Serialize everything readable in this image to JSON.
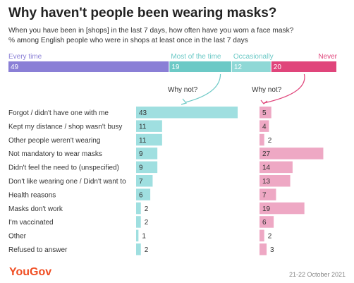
{
  "title": "Why haven't people been wearing masks?",
  "subtitle_1": "When you have been in [shops] in the last 7 days, how often have you worn a face mask?",
  "subtitle_2": "% among English people who were in shops at least once in the last 7 days",
  "brand": "YouGov",
  "date": "21-22 October 2021",
  "colors": {
    "every_time": "#8a7fd6",
    "most_of_the_time": "#6cc9c6",
    "occasionally": "#8fd8d6",
    "never": "#e0457b",
    "reason_left": "#9fdfe0",
    "reason_right": "#eea8c4",
    "text": "#333333"
  },
  "chart_data": [
    {
      "type": "bar",
      "orientation": "horizontal-stacked",
      "segments": [
        {
          "name": "Every time",
          "value": 49
        },
        {
          "name": "Most of the time",
          "value": 19
        },
        {
          "name": "Occasionally",
          "value": 12
        },
        {
          "name": "Never",
          "value": 20
        }
      ],
      "annotations": [
        "Why not?",
        "Why not?"
      ]
    },
    {
      "type": "bar",
      "orientation": "horizontal",
      "categories": [
        "Forgot / didn't have one with me",
        "Kept my distance / shop wasn't busy",
        "Other people weren't wearing",
        "Not mandatory to wear masks",
        "Didn't feel the need to (unspecified)",
        "Don't like wearing one / Didn't want to",
        "Health reasons",
        "Masks don't work",
        "I'm vaccinated",
        "Other",
        "Refused to answer"
      ],
      "series": [
        {
          "values": [
            43,
            11,
            11,
            9,
            9,
            7,
            6,
            2,
            2,
            1,
            2
          ]
        },
        {
          "values": [
            5,
            4,
            2,
            27,
            14,
            13,
            7,
            19,
            6,
            2,
            3
          ]
        }
      ]
    }
  ]
}
